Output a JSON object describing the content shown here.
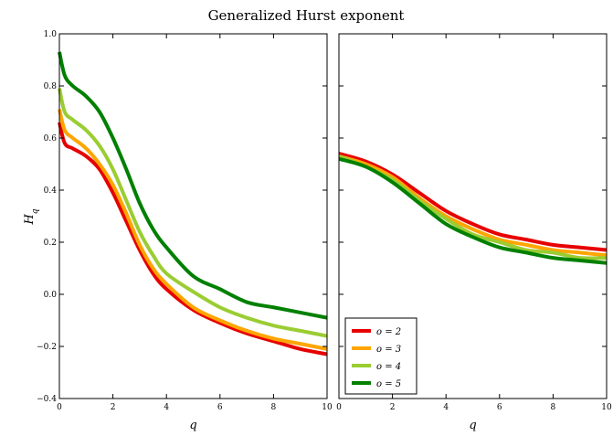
{
  "chart_data": {
    "type": "line",
    "title": "Generalized Hurst exponent",
    "ylabel": "H_q",
    "ylim": [
      -0.4,
      1.0
    ],
    "yticks": [
      "−0.4",
      "−0.2",
      "0.0",
      "0.2",
      "0.4",
      "0.6",
      "0.8",
      "1.0"
    ],
    "yticks_values": [
      -0.4,
      -0.2,
      0.0,
      0.2,
      0.4,
      0.6,
      0.8,
      1.0
    ],
    "legend_position": "lower-left of right panel",
    "grid": false,
    "panels": [
      {
        "xlabel": "q",
        "xlim": [
          0,
          10
        ],
        "xticks": [
          0,
          2,
          4,
          6,
          8,
          10
        ],
        "x": [
          0.0,
          0.2,
          0.5,
          1.0,
          1.5,
          2.0,
          2.5,
          3.0,
          3.5,
          4.0,
          5.0,
          6.0,
          7.0,
          8.0,
          9.0,
          10.0
        ],
        "series": [
          {
            "name": "o = 2",
            "color": "#e60000",
            "values": [
              0.66,
              0.58,
              0.56,
              0.53,
              0.48,
              0.39,
              0.28,
              0.17,
              0.08,
              0.02,
              -0.06,
              -0.11,
              -0.15,
              -0.18,
              -0.21,
              -0.23
            ]
          },
          {
            "name": "o = 3",
            "color": "#ffa500",
            "values": [
              0.71,
              0.63,
              0.6,
              0.56,
              0.5,
              0.42,
              0.31,
              0.19,
              0.1,
              0.04,
              -0.05,
              -0.1,
              -0.14,
              -0.17,
              -0.19,
              -0.21
            ]
          },
          {
            "name": "o = 4",
            "color": "#9acd32",
            "values": [
              0.79,
              0.7,
              0.67,
              0.63,
              0.57,
              0.48,
              0.36,
              0.24,
              0.15,
              0.08,
              0.01,
              -0.05,
              -0.09,
              -0.12,
              -0.14,
              -0.16
            ]
          },
          {
            "name": "o = 5",
            "color": "#008000",
            "values": [
              0.93,
              0.84,
              0.8,
              0.76,
              0.7,
              0.6,
              0.48,
              0.35,
              0.25,
              0.18,
              0.07,
              0.02,
              -0.03,
              -0.05,
              -0.07,
              -0.09
            ]
          }
        ]
      },
      {
        "xlabel": "q",
        "xlim": [
          0,
          10
        ],
        "xticks": [
          0,
          2,
          4,
          6,
          8,
          10
        ],
        "x": [
          0.0,
          1.0,
          2.0,
          3.0,
          4.0,
          5.0,
          6.0,
          7.0,
          8.0,
          9.0,
          10.0
        ],
        "series": [
          {
            "name": "o = 2",
            "color": "#e60000",
            "values": [
              0.54,
              0.51,
              0.46,
              0.39,
              0.32,
              0.27,
              0.23,
              0.21,
              0.19,
              0.18,
              0.17
            ]
          },
          {
            "name": "o = 3",
            "color": "#ffa500",
            "values": [
              0.53,
              0.5,
              0.45,
              0.37,
              0.3,
              0.25,
              0.21,
              0.19,
              0.17,
              0.16,
              0.15
            ]
          },
          {
            "name": "o = 4",
            "color": "#9acd32",
            "values": [
              0.53,
              0.49,
              0.44,
              0.36,
              0.29,
              0.23,
              0.2,
              0.17,
              0.16,
              0.14,
              0.14
            ]
          },
          {
            "name": "o = 5",
            "color": "#008000",
            "values": [
              0.52,
              0.49,
              0.43,
              0.35,
              0.27,
              0.22,
              0.18,
              0.16,
              0.14,
              0.13,
              0.12
            ]
          }
        ]
      }
    ]
  }
}
